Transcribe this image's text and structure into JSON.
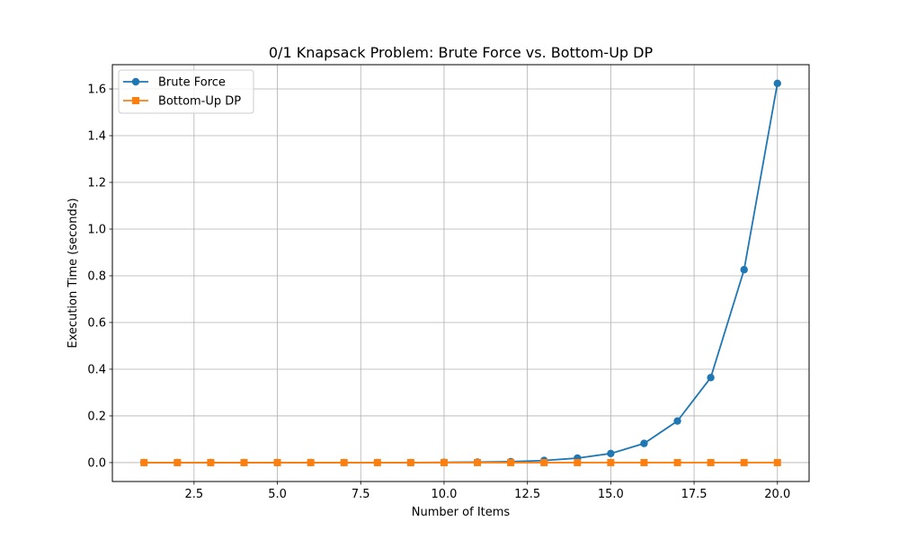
{
  "chart_data": {
    "type": "line",
    "title": "0/1 Knapsack Problem: Brute Force vs. Bottom-Up DP",
    "xlabel": "Number of Items",
    "ylabel": "Execution Time (seconds)",
    "xlim": [
      0.05,
      20.95
    ],
    "ylim": [
      -0.081,
      1.704
    ],
    "xticks": [
      2.5,
      5.0,
      7.5,
      10.0,
      12.5,
      15.0,
      17.5,
      20.0
    ],
    "xtick_labels": [
      "2.5",
      "5.0",
      "7.5",
      "10.0",
      "12.5",
      "15.0",
      "17.5",
      "20.0"
    ],
    "yticks": [
      0.0,
      0.2,
      0.4,
      0.6,
      0.8,
      1.0,
      1.2,
      1.4,
      1.6
    ],
    "ytick_labels": [
      "0.0",
      "0.2",
      "0.4",
      "0.6",
      "0.8",
      "1.0",
      "1.2",
      "1.4",
      "1.6"
    ],
    "grid": true,
    "legend_position": "top-left",
    "x": [
      1,
      2,
      3,
      4,
      5,
      6,
      7,
      8,
      9,
      10,
      11,
      12,
      13,
      14,
      15,
      16,
      17,
      18,
      19,
      20
    ],
    "series": [
      {
        "name": "Brute Force",
        "color": "#1f77b4",
        "marker": "circle",
        "values": [
          0.0,
          0.0,
          0.0,
          0.0,
          0.0,
          0.0,
          0.0,
          0.0,
          0.0,
          0.001,
          0.002,
          0.004,
          0.009,
          0.019,
          0.039,
          0.082,
          0.178,
          0.364,
          0.826,
          1.624
        ]
      },
      {
        "name": "Bottom-Up DP",
        "color": "#ff7f0e",
        "marker": "square",
        "values": [
          0.0,
          0.0,
          0.0,
          0.0,
          0.0,
          0.0,
          0.0,
          0.0,
          0.0,
          0.0,
          0.0,
          0.0,
          0.0,
          0.0,
          0.0,
          0.0,
          0.0,
          0.0,
          0.0,
          0.0
        ]
      }
    ]
  }
}
